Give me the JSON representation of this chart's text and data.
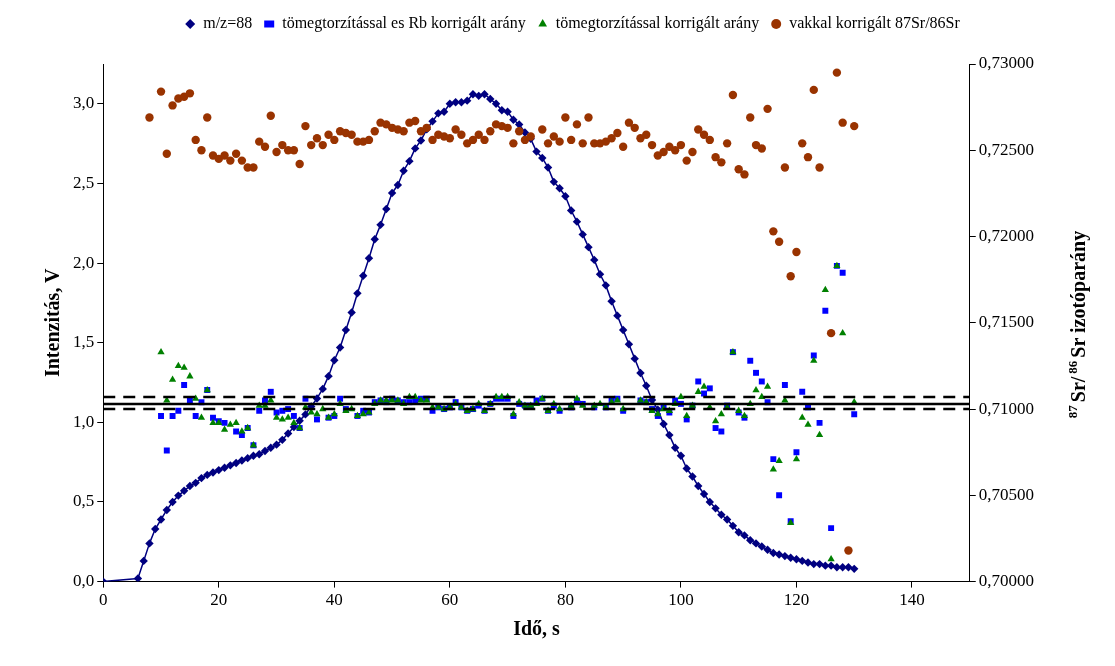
{
  "chart_data": {
    "type": "line",
    "xlabel": "Idő, s",
    "ylabel": "Intenzitás, V",
    "y2label": "$^{87}$Sr/$^{86}$Sr izotóparány",
    "xlim": [
      0,
      150
    ],
    "xticks": [
      0,
      20,
      40,
      60,
      80,
      100,
      120,
      140
    ],
    "ylim": [
      0,
      3.25
    ],
    "yticks": [
      {
        "value": 0,
        "label": "0,0"
      },
      {
        "value": 0.5,
        "label": "0,5"
      },
      {
        "value": 1,
        "label": "1,0"
      },
      {
        "value": 1.5,
        "label": "1,5"
      },
      {
        "value": 2,
        "label": "2,0"
      },
      {
        "value": 2.5,
        "label": "2,5"
      },
      {
        "value": 3,
        "label": "3,0"
      }
    ],
    "y2lim": [
      0.7,
      0.73
    ],
    "y2ticks": [
      {
        "value": 0.7,
        "label": "0,70000"
      },
      {
        "value": 0.705,
        "label": "0,70500"
      },
      {
        "value": 0.71,
        "label": "0,71000"
      },
      {
        "value": 0.715,
        "label": "0,71500"
      },
      {
        "value": 0.72,
        "label": "0,72000"
      },
      {
        "value": 0.725,
        "label": "0,72500"
      },
      {
        "value": 0.73,
        "label": "0,73000"
      }
    ],
    "grid": false,
    "legend": "top",
    "ref_lines": [
      {
        "axis": "y2",
        "value": 0.7107,
        "color": "#000000",
        "line_style": "dashed"
      },
      {
        "axis": "y2",
        "value": 0.7103,
        "color": "#000000",
        "line_style": "solid"
      },
      {
        "axis": "y2",
        "value": 0.71,
        "color": "#000000",
        "line_style": "dashed"
      }
    ],
    "series": [
      {
        "name": "m/z=88",
        "color": "#000080",
        "marker": "diamond",
        "line_style": "solid",
        "x": [
          0,
          6,
          7,
          8,
          9,
          10,
          11,
          12,
          13,
          14,
          15,
          16,
          17,
          18,
          19,
          20,
          21,
          22,
          23,
          24,
          25,
          26,
          27,
          28,
          29,
          30,
          31,
          32,
          33,
          34,
          35,
          36,
          37,
          38,
          39,
          40,
          41,
          42,
          43,
          44,
          45,
          46,
          47,
          48,
          49,
          50,
          51,
          52,
          53,
          54,
          55,
          56,
          57,
          58,
          59,
          60,
          61,
          62,
          63,
          64,
          65,
          66,
          67,
          68,
          69,
          70,
          71,
          72,
          73,
          74,
          75,
          76,
          77,
          78,
          79,
          80,
          81,
          82,
          83,
          84,
          85,
          86,
          87,
          88,
          89,
          90,
          91,
          92,
          93,
          94,
          95,
          96,
          97,
          98,
          99,
          100,
          101,
          102,
          103,
          104,
          105,
          106,
          107,
          108,
          109,
          110,
          111,
          112,
          113,
          114,
          115,
          116,
          117,
          118,
          119,
          120,
          121,
          122,
          123,
          124,
          125,
          126,
          127,
          128,
          129,
          130
        ],
        "values": [
          0,
          0.02,
          0.13,
          0.24,
          0.33,
          0.39,
          0.45,
          0.5,
          0.54,
          0.57,
          0.6,
          0.62,
          0.65,
          0.67,
          0.685,
          0.7,
          0.715,
          0.73,
          0.745,
          0.76,
          0.775,
          0.79,
          0.8,
          0.82,
          0.84,
          0.86,
          0.89,
          0.93,
          0.97,
          1.01,
          1.05,
          1.1,
          1.15,
          1.21,
          1.29,
          1.39,
          1.47,
          1.58,
          1.69,
          1.81,
          1.92,
          2.03,
          2.15,
          2.24,
          2.34,
          2.44,
          2.49,
          2.58,
          2.64,
          2.72,
          2.77,
          2.84,
          2.89,
          2.94,
          2.95,
          3,
          3.01,
          3.01,
          3.02,
          3.06,
          3.05,
          3.06,
          3.03,
          3,
          2.96,
          2.95,
          2.9,
          2.87,
          2.82,
          2.78,
          2.7,
          2.66,
          2.6,
          2.51,
          2.47,
          2.42,
          2.33,
          2.26,
          2.18,
          2.1,
          2.02,
          1.93,
          1.86,
          1.76,
          1.67,
          1.58,
          1.49,
          1.4,
          1.31,
          1.23,
          1.14,
          1.08,
          0.99,
          0.92,
          0.84,
          0.79,
          0.71,
          0.66,
          0.6,
          0.55,
          0.5,
          0.46,
          0.42,
          0.39,
          0.35,
          0.31,
          0.29,
          0.26,
          0.24,
          0.22,
          0.2,
          0.18,
          0.17,
          0.16,
          0.15,
          0.14,
          0.13,
          0.12,
          0.11,
          0.11,
          0.1,
          0.1,
          0.09,
          0.09,
          0.09,
          0.08
        ]
      },
      {
        "name": "tömegtorzítással es Rb korrigált arány",
        "type": "scatter",
        "axis": "y2",
        "color": "#0000ff",
        "marker": "square",
        "x": [
          10,
          11,
          12,
          13,
          14,
          15,
          16,
          17,
          18,
          19,
          20,
          21,
          23,
          24,
          25,
          26,
          27,
          28,
          29,
          30,
          31,
          32,
          33,
          34,
          35,
          37,
          39,
          40,
          41,
          42,
          44,
          45,
          46,
          47,
          48,
          49,
          50,
          51,
          52,
          53,
          54,
          55,
          56,
          57,
          58,
          59,
          60,
          61,
          62,
          63,
          64,
          65,
          66,
          67,
          68,
          69,
          70,
          71,
          72,
          73,
          74,
          75,
          76,
          77,
          78,
          79,
          81,
          82,
          83,
          85,
          87,
          88,
          89,
          90,
          93,
          94,
          95,
          96,
          97,
          98,
          99,
          100,
          101,
          102,
          103,
          104,
          105,
          106,
          107,
          108,
          109,
          110,
          111,
          112,
          113,
          114,
          115,
          116,
          117,
          118,
          119,
          120,
          121,
          122,
          123,
          124,
          125,
          126,
          127,
          128,
          130
        ],
        "values": [
          0.7096,
          0.7076,
          0.7096,
          0.7099,
          0.7114,
          0.7105,
          0.7096,
          0.7104,
          0.7111,
          0.7095,
          0.7093,
          0.7092,
          0.7087,
          0.7085,
          0.7089,
          0.7079,
          0.7099,
          0.7105,
          0.711,
          0.7098,
          0.7099,
          0.71,
          0.7096,
          0.7089,
          0.7106,
          0.7094,
          0.7095,
          0.7096,
          0.7106,
          0.71,
          0.7096,
          0.7099,
          0.7098,
          0.7104,
          0.7105,
          0.7104,
          0.7106,
          0.7105,
          0.7104,
          0.7104,
          0.7105,
          0.7106,
          0.7106,
          0.7099,
          0.7101,
          0.71,
          0.7101,
          0.7104,
          0.7101,
          0.7099,
          0.71,
          0.7102,
          0.7099,
          0.7103,
          0.7106,
          0.7106,
          0.7106,
          0.7096,
          0.7103,
          0.7102,
          0.7102,
          0.7105,
          0.7106,
          0.7099,
          0.7102,
          0.7099,
          0.7101,
          0.7105,
          0.7103,
          0.7101,
          0.7101,
          0.7105,
          0.7106,
          0.7099,
          0.7105,
          0.7104,
          0.71,
          0.7096,
          0.7101,
          0.7098,
          0.7105,
          0.7103,
          0.7094,
          0.7102,
          0.7116,
          0.7109,
          0.7112,
          0.7089,
          0.7087,
          0.7102,
          0.7133,
          0.7098,
          0.7095,
          0.7128,
          0.7121,
          0.7116,
          0.7104,
          0.7071,
          0.705,
          0.7114,
          0.7035,
          0.7075,
          0.711,
          0.7101,
          0.7131,
          0.7092,
          0.7157,
          0.7031,
          0.7183,
          0.7179,
          0.7097
        ]
      },
      {
        "name": "tömegtorzítással korrigált arány",
        "type": "scatter",
        "axis": "y2",
        "color": "#008000",
        "marker": "triangle",
        "x": [
          10,
          11,
          12,
          13,
          14,
          15,
          16,
          17,
          18,
          19,
          20,
          21,
          22,
          23,
          24,
          25,
          26,
          27,
          28,
          29,
          30,
          31,
          32,
          33,
          34,
          35,
          36,
          37,
          38,
          39,
          40,
          41,
          42,
          43,
          44,
          45,
          46,
          47,
          48,
          49,
          50,
          51,
          52,
          53,
          54,
          55,
          56,
          57,
          58,
          59,
          60,
          61,
          62,
          63,
          64,
          65,
          66,
          67,
          68,
          69,
          70,
          71,
          72,
          73,
          74,
          75,
          76,
          77,
          78,
          79,
          81,
          82,
          83,
          85,
          86,
          87,
          88,
          89,
          90,
          93,
          94,
          95,
          96,
          97,
          98,
          99,
          100,
          101,
          102,
          103,
          104,
          105,
          106,
          107,
          108,
          109,
          110,
          111,
          112,
          113,
          114,
          115,
          116,
          117,
          118,
          119,
          120,
          121,
          122,
          123,
          124,
          125,
          126,
          127,
          128,
          130
        ],
        "values": [
          0.7133,
          0.7105,
          0.7117,
          0.7125,
          0.7124,
          0.7119,
          0.7106,
          0.7095,
          0.7111,
          0.7092,
          0.7092,
          0.7088,
          0.7091,
          0.7092,
          0.7087,
          0.7089,
          0.7079,
          0.7102,
          0.7102,
          0.7105,
          0.7095,
          0.7094,
          0.7095,
          0.7092,
          0.7089,
          0.7101,
          0.7098,
          0.7097,
          0.71,
          0.7095,
          0.7097,
          0.7103,
          0.7099,
          0.71,
          0.7096,
          0.7097,
          0.7098,
          0.7103,
          0.7105,
          0.7105,
          0.7105,
          0.7105,
          0.7103,
          0.7107,
          0.7107,
          0.7105,
          0.7105,
          0.7101,
          0.7101,
          0.71,
          0.7101,
          0.7103,
          0.7101,
          0.7099,
          0.71,
          0.7103,
          0.7099,
          0.7103,
          0.7107,
          0.7107,
          0.7107,
          0.7097,
          0.7104,
          0.7102,
          0.7102,
          0.7103,
          0.7106,
          0.7099,
          0.7103,
          0.71,
          0.7102,
          0.7106,
          0.7102,
          0.7102,
          0.7103,
          0.7101,
          0.7104,
          0.7105,
          0.71,
          0.7105,
          0.7104,
          0.7099,
          0.7097,
          0.71,
          0.7099,
          0.7103,
          0.7107,
          0.7096,
          0.7102,
          0.711,
          0.7113,
          0.7101,
          0.7093,
          0.7097,
          0.7101,
          0.7133,
          0.7099,
          0.7096,
          0.7103,
          0.7111,
          0.7107,
          0.7113,
          0.7065,
          0.707,
          0.7105,
          0.7034,
          0.7071,
          0.7095,
          0.7091,
          0.7128,
          0.7085,
          0.7169,
          0.7013,
          0.7183,
          0.7144,
          0.7104
        ]
      },
      {
        "name": "vakkal korrigált 87Sr/86Sr",
        "type": "scatter",
        "axis": "y2",
        "color": "#993300",
        "marker": "circle",
        "x": [
          8,
          10,
          11,
          12,
          13,
          14,
          15,
          16,
          17,
          18,
          19,
          20,
          21,
          22,
          23,
          24,
          25,
          26,
          27,
          28,
          29,
          30,
          31,
          32,
          33,
          34,
          35,
          36,
          37,
          38,
          39,
          40,
          41,
          42,
          43,
          44,
          45,
          46,
          47,
          48,
          49,
          50,
          51,
          52,
          53,
          54,
          55,
          56,
          57,
          58,
          59,
          60,
          61,
          62,
          63,
          64,
          65,
          66,
          67,
          68,
          69,
          70,
          71,
          72,
          73,
          74,
          76,
          77,
          78,
          79,
          80,
          81,
          82,
          83,
          84,
          85,
          86,
          87,
          88,
          89,
          90,
          91,
          92,
          93,
          94,
          95,
          96,
          97,
          98,
          99,
          100,
          101,
          102,
          103,
          104,
          105,
          106,
          107,
          108,
          109,
          110,
          111,
          112,
          113,
          114,
          115,
          116,
          117,
          118,
          119,
          120,
          121,
          122,
          123,
          124,
          126,
          127,
          128,
          129,
          130
        ],
        "values": [
          0.7269,
          0.7284,
          0.7248,
          0.7276,
          0.728,
          0.7281,
          0.7283,
          0.7256,
          0.725,
          0.7269,
          0.7247,
          0.7245,
          0.7247,
          0.7244,
          0.7248,
          0.7244,
          0.724,
          0.724,
          0.7255,
          0.7252,
          0.727,
          0.7249,
          0.7253,
          0.725,
          0.725,
          0.7242,
          0.7264,
          0.7253,
          0.7257,
          0.7253,
          0.7259,
          0.7256,
          0.7261,
          0.726,
          0.7259,
          0.7255,
          0.7255,
          0.7256,
          0.7261,
          0.7266,
          0.7265,
          0.7263,
          0.7262,
          0.7261,
          0.7266,
          0.7267,
          0.7261,
          0.7263,
          0.7256,
          0.7259,
          0.7258,
          0.7257,
          0.7262,
          0.7259,
          0.7254,
          0.7256,
          0.7259,
          0.7256,
          0.7261,
          0.7265,
          0.7264,
          0.7263,
          0.7254,
          0.7261,
          0.7256,
          0.7258,
          0.7262,
          0.7254,
          0.7258,
          0.7255,
          0.7269,
          0.7256,
          0.7265,
          0.7254,
          0.7269,
          0.7254,
          0.7254,
          0.7255,
          0.7257,
          0.726,
          0.7252,
          0.7266,
          0.7263,
          0.7257,
          0.7259,
          0.7253,
          0.7247,
          0.7249,
          0.7252,
          0.725,
          0.7253,
          0.7244,
          0.7249,
          0.7262,
          0.7259,
          0.7256,
          0.7246,
          0.7243,
          0.7254,
          0.7282,
          0.7239,
          0.7236,
          0.7269,
          0.7253,
          0.7251,
          0.7274,
          0.7203,
          0.7197,
          0.724,
          0.7177,
          0.7191,
          0.7254,
          0.7246,
          0.7285,
          0.724,
          0.7144,
          0.7295,
          0.7266,
          0.7018,
          0.7264
        ]
      }
    ]
  }
}
